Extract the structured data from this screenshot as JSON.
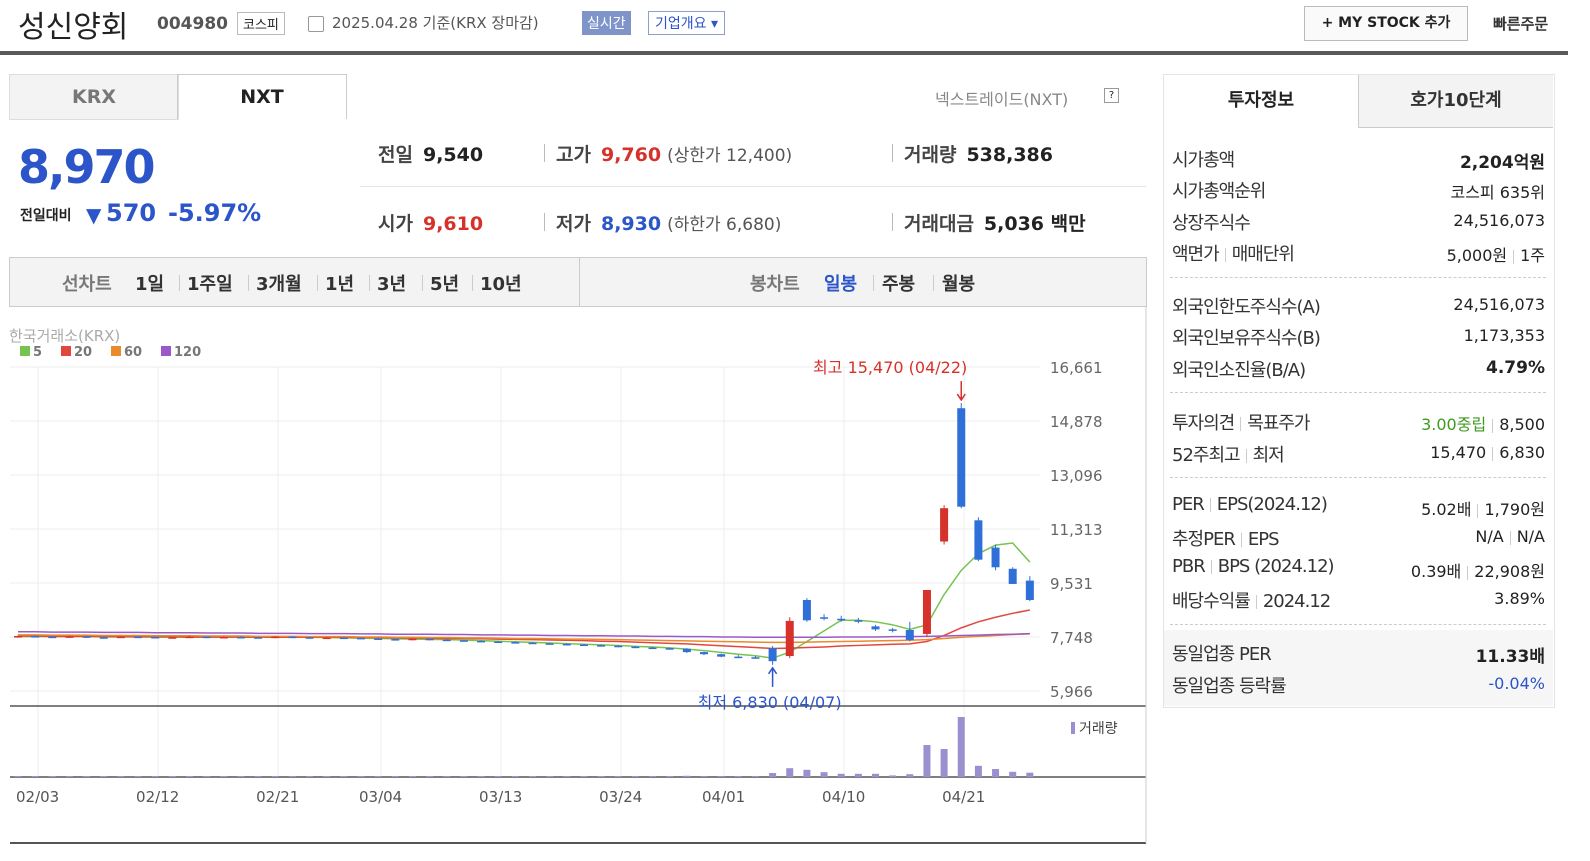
{
  "header": {
    "name": "성신양회",
    "code": "004980",
    "market": "코스피",
    "date": "2025.04.28 기준(KRX 장마감)",
    "realtime": "실시간",
    "company": "기업개요",
    "mystock": "MY STOCK 추가",
    "quick": "빠른주문"
  },
  "tabs": [
    "KRX",
    "NXT"
  ],
  "nxt_label": "넥스트레이드(NXT)",
  "price": {
    "current": "8,970",
    "change_label": "전일대비",
    "change": "570",
    "rate": "-5.97%"
  },
  "quote": [
    {
      "label": "전일",
      "value": "9,540"
    },
    {
      "label": "고가",
      "value": "9,760",
      "color": "#d6312a",
      "note": "(상한가 12,400)"
    },
    {
      "label": "거래량",
      "value": "538,386"
    },
    {
      "label": "시가",
      "value": "9,610",
      "color": "#d6312a"
    },
    {
      "label": "저가",
      "value": "8,930",
      "color": "#2b55c8",
      "note": "(하한가 6,680)"
    },
    {
      "label": "거래대금",
      "value": "5,036 백만"
    }
  ],
  "periods": {
    "line_label": "선차트",
    "line_items": [
      "1일",
      "1주일",
      "3개월",
      "1년",
      "3년",
      "5년",
      "10년"
    ],
    "candle_label": "봉차트",
    "candle_items": [
      "일봉",
      "주봉",
      "월봉"
    ]
  },
  "chart_data": {
    "type": "candlestick",
    "source": "한국거래소(KRX)",
    "up_color": "#d6312a",
    "down_color": "#2f6fd8",
    "volume_color": "#9b8fd0",
    "volume_label": "거래량",
    "ylim": [
      5966,
      16661
    ],
    "yticks": [
      {
        "value": 5966,
        "label": "5,966"
      },
      {
        "value": 7748,
        "label": "7,748"
      },
      {
        "value": 9531,
        "label": "9,531"
      },
      {
        "value": 11313,
        "label": "11,313"
      },
      {
        "value": 13096,
        "label": "13,096"
      },
      {
        "value": 14878,
        "label": "14,878"
      },
      {
        "value": 16661,
        "label": "16,661"
      }
    ],
    "grid": true,
    "categories": [
      "02/03",
      null,
      null,
      null,
      null,
      null,
      null,
      "02/12",
      null,
      null,
      null,
      null,
      null,
      null,
      "02/21",
      null,
      null,
      null,
      null,
      null,
      "03/04",
      null,
      null,
      null,
      null,
      null,
      null,
      "03/13",
      null,
      null,
      null,
      null,
      null,
      null,
      "03/24",
      null,
      null,
      null,
      null,
      null,
      "04/01",
      null,
      null,
      null,
      null,
      null,
      null,
      "04/10",
      null,
      null,
      null,
      null,
      null,
      null,
      "04/21",
      null,
      null,
      null,
      null,
      null
    ],
    "candles": [
      [
        7750,
        7800,
        7720,
        7780
      ],
      [
        7780,
        7800,
        7740,
        7760
      ],
      [
        7760,
        7780,
        7730,
        7750
      ],
      [
        7750,
        7790,
        7730,
        7770
      ],
      [
        7770,
        7780,
        7720,
        7740
      ],
      [
        7740,
        7760,
        7710,
        7730
      ],
      [
        7730,
        7780,
        7720,
        7760
      ],
      [
        7760,
        7780,
        7730,
        7750
      ],
      [
        7750,
        7760,
        7700,
        7720
      ],
      [
        7720,
        7760,
        7700,
        7740
      ],
      [
        7740,
        7780,
        7730,
        7760
      ],
      [
        7760,
        7770,
        7710,
        7730
      ],
      [
        7730,
        7770,
        7720,
        7750
      ],
      [
        7750,
        7770,
        7720,
        7740
      ],
      [
        7740,
        7750,
        7700,
        7720
      ],
      [
        7720,
        7780,
        7710,
        7760
      ],
      [
        7760,
        7770,
        7720,
        7740
      ],
      [
        7740,
        7750,
        7690,
        7710
      ],
      [
        7710,
        7750,
        7700,
        7730
      ],
      [
        7730,
        7740,
        7700,
        7720
      ],
      [
        7720,
        7730,
        7680,
        7700
      ],
      [
        7700,
        7720,
        7660,
        7680
      ],
      [
        7680,
        7690,
        7630,
        7650
      ],
      [
        7650,
        7710,
        7640,
        7690
      ],
      [
        7690,
        7700,
        7640,
        7660
      ],
      [
        7660,
        7680,
        7620,
        7640
      ],
      [
        7640,
        7660,
        7600,
        7620
      ],
      [
        7620,
        7640,
        7580,
        7600
      ],
      [
        7600,
        7620,
        7560,
        7580
      ],
      [
        7580,
        7600,
        7540,
        7560
      ],
      [
        7560,
        7580,
        7520,
        7540
      ],
      [
        7540,
        7560,
        7500,
        7520
      ],
      [
        7520,
        7540,
        7480,
        7500
      ],
      [
        7500,
        7520,
        7460,
        7480
      ],
      [
        7480,
        7500,
        7440,
        7460
      ],
      [
        7460,
        7480,
        7410,
        7430
      ],
      [
        7430,
        7450,
        7380,
        7400
      ],
      [
        7400,
        7420,
        7360,
        7380
      ],
      [
        7380,
        7400,
        7340,
        7360
      ],
      [
        7360,
        7380,
        7220,
        7250
      ],
      [
        7250,
        7260,
        7150,
        7180
      ],
      [
        7180,
        7200,
        7080,
        7100
      ],
      [
        7100,
        7150,
        7060,
        7080
      ],
      [
        7080,
        7120,
        7030,
        7060
      ],
      [
        7380,
        7450,
        6830,
        6950
      ],
      [
        7120,
        8400,
        7050,
        8280
      ],
      [
        8970,
        9030,
        8250,
        8300
      ],
      [
        8400,
        8500,
        8300,
        8350
      ],
      [
        8350,
        8450,
        8250,
        8320
      ],
      [
        8300,
        8380,
        8200,
        8250
      ],
      [
        8100,
        8150,
        7950,
        8000
      ],
      [
        8000,
        8050,
        7900,
        7980
      ],
      [
        7980,
        8250,
        7600,
        7650
      ],
      [
        7850,
        9300,
        7750,
        9300
      ],
      [
        10900,
        12100,
        10800,
        12000
      ],
      [
        15300,
        15470,
        12000,
        12050
      ],
      [
        11600,
        11700,
        10250,
        10300
      ],
      [
        10700,
        10800,
        9950,
        10050
      ],
      [
        10000,
        10050,
        9500,
        9500
      ],
      [
        9610,
        9760,
        8930,
        8970
      ]
    ],
    "volumes": [
      120000,
      90000,
      80000,
      100000,
      90000,
      80000,
      110000,
      90000,
      100000,
      80000,
      90000,
      100000,
      80000,
      90000,
      100000,
      110000,
      90000,
      100000,
      80000,
      90000,
      100000,
      90000,
      110000,
      80000,
      90000,
      100000,
      90000,
      80000,
      100000,
      90000,
      80000,
      90000,
      100000,
      90000,
      80000,
      90000,
      100000,
      110000,
      90000,
      150000,
      130000,
      120000,
      100000,
      110000,
      500000,
      1100000,
      900000,
      600000,
      400000,
      400000,
      400000,
      200000,
      350000,
      4000000,
      3500000,
      7500000,
      1400000,
      1000000,
      650000,
      538386
    ],
    "series": [
      {
        "name": "5",
        "color": "#77c34f",
        "values": [
          7760,
          7760,
          7760,
          7760,
          7760,
          7750,
          7750,
          7750,
          7740,
          7740,
          7740,
          7740,
          7740,
          7740,
          7740,
          7740,
          7740,
          7740,
          7730,
          7720,
          7710,
          7700,
          7690,
          7680,
          7670,
          7660,
          7650,
          7630,
          7610,
          7590,
          7570,
          7550,
          7530,
          7510,
          7490,
          7470,
          7440,
          7420,
          7390,
          7350,
          7300,
          7240,
          7180,
          7130,
          7050,
          7250,
          7600,
          7950,
          8300,
          8300,
          8250,
          8150,
          8000,
          8150,
          9150,
          9950,
          10500,
          10780,
          10850,
          10220
        ]
      },
      {
        "name": "20",
        "color": "#e0483e",
        "values": [
          7780,
          7780,
          7770,
          7770,
          7770,
          7770,
          7760,
          7760,
          7760,
          7760,
          7750,
          7750,
          7750,
          7750,
          7750,
          7740,
          7740,
          7740,
          7740,
          7740,
          7730,
          7730,
          7720,
          7720,
          7710,
          7700,
          7700,
          7690,
          7680,
          7670,
          7660,
          7650,
          7640,
          7630,
          7610,
          7600,
          7580,
          7560,
          7540,
          7520,
          7490,
          7460,
          7430,
          7400,
          7370,
          7380,
          7400,
          7420,
          7450,
          7470,
          7490,
          7510,
          7520,
          7600,
          7800,
          8050,
          8250,
          8400,
          8530,
          8640
        ]
      },
      {
        "name": "60",
        "color": "#e98a2d",
        "values": [
          7820,
          7820,
          7810,
          7810,
          7810,
          7800,
          7800,
          7800,
          7790,
          7790,
          7790,
          7780,
          7780,
          7780,
          7770,
          7770,
          7770,
          7760,
          7760,
          7760,
          7750,
          7750,
          7740,
          7740,
          7730,
          7730,
          7720,
          7720,
          7710,
          7700,
          7700,
          7690,
          7680,
          7680,
          7670,
          7660,
          7650,
          7640,
          7630,
          7620,
          7610,
          7600,
          7590,
          7580,
          7570,
          7570,
          7580,
          7590,
          7600,
          7610,
          7620,
          7630,
          7640,
          7660,
          7700,
          7740,
          7770,
          7800,
          7830,
          7850
        ]
      },
      {
        "name": "120",
        "color": "#9b59c8",
        "values": [
          7920,
          7920,
          7910,
          7910,
          7910,
          7900,
          7900,
          7900,
          7890,
          7890,
          7890,
          7880,
          7880,
          7880,
          7870,
          7870,
          7870,
          7860,
          7860,
          7860,
          7850,
          7850,
          7840,
          7840,
          7840,
          7830,
          7830,
          7820,
          7820,
          7810,
          7810,
          7800,
          7800,
          7790,
          7790,
          7780,
          7780,
          7770,
          7770,
          7760,
          7760,
          7750,
          7750,
          7740,
          7740,
          7740,
          7740,
          7740,
          7750,
          7750,
          7750,
          7760,
          7760,
          7770,
          7780,
          7800,
          7810,
          7830,
          7840,
          7860
        ]
      }
    ],
    "annotations": [
      {
        "text": "최고 15,470 (04/22)",
        "color": "#d6312a"
      },
      {
        "text": "최저 6,830 (04/07)",
        "color": "#2b55c8"
      }
    ]
  },
  "invest": {
    "tabs": [
      "투자정보",
      "호가10단계"
    ],
    "sections": [
      [
        {
          "label": [
            "시가총액"
          ],
          "value": [
            "2,204억원"
          ],
          "bold": true
        },
        {
          "label": [
            "시가총액순위"
          ],
          "value": [
            "코스피 635위"
          ]
        },
        {
          "label": [
            "상장주식수"
          ],
          "value": [
            "24,516,073"
          ]
        },
        {
          "label": [
            "액면가",
            "매매단위"
          ],
          "value": [
            "5,000원",
            "1주"
          ]
        }
      ],
      [
        {
          "label": [
            "외국인한도주식수(A)"
          ],
          "value": [
            "24,516,073"
          ]
        },
        {
          "label": [
            "외국인보유주식수(B)"
          ],
          "value": [
            "1,173,353"
          ]
        },
        {
          "label": [
            "외국인소진율(B/A)"
          ],
          "value": [
            "4.79%"
          ],
          "bold": true
        }
      ],
      [
        {
          "label": [
            "투자의견",
            "목표주가"
          ],
          "value": [
            "3.00중립",
            "8,500"
          ],
          "color": "#3e9a1f"
        },
        {
          "label": [
            "52주최고",
            "최저"
          ],
          "value": [
            "15,470",
            "6,830"
          ]
        }
      ],
      [
        {
          "label": [
            "PER",
            "EPS(2024.12)"
          ],
          "value": [
            "5.02배",
            "1,790원"
          ]
        },
        {
          "label": [
            "추정PER",
            "EPS"
          ],
          "value": [
            "N/A",
            "N/A"
          ]
        },
        {
          "label": [
            "PBR",
            "BPS (2024.12)"
          ],
          "value": [
            "0.39배",
            "22,908원"
          ]
        },
        {
          "label": [
            "배당수익률",
            "2024.12"
          ],
          "value": [
            "3.89%"
          ]
        }
      ],
      [
        {
          "label": [
            "동일업종 PER"
          ],
          "value": [
            "11.33배"
          ],
          "bold": true
        },
        {
          "label": [
            "동일업종 등락률"
          ],
          "value": [
            "-0.04%"
          ],
          "color": "#2b55c8"
        }
      ]
    ]
  }
}
